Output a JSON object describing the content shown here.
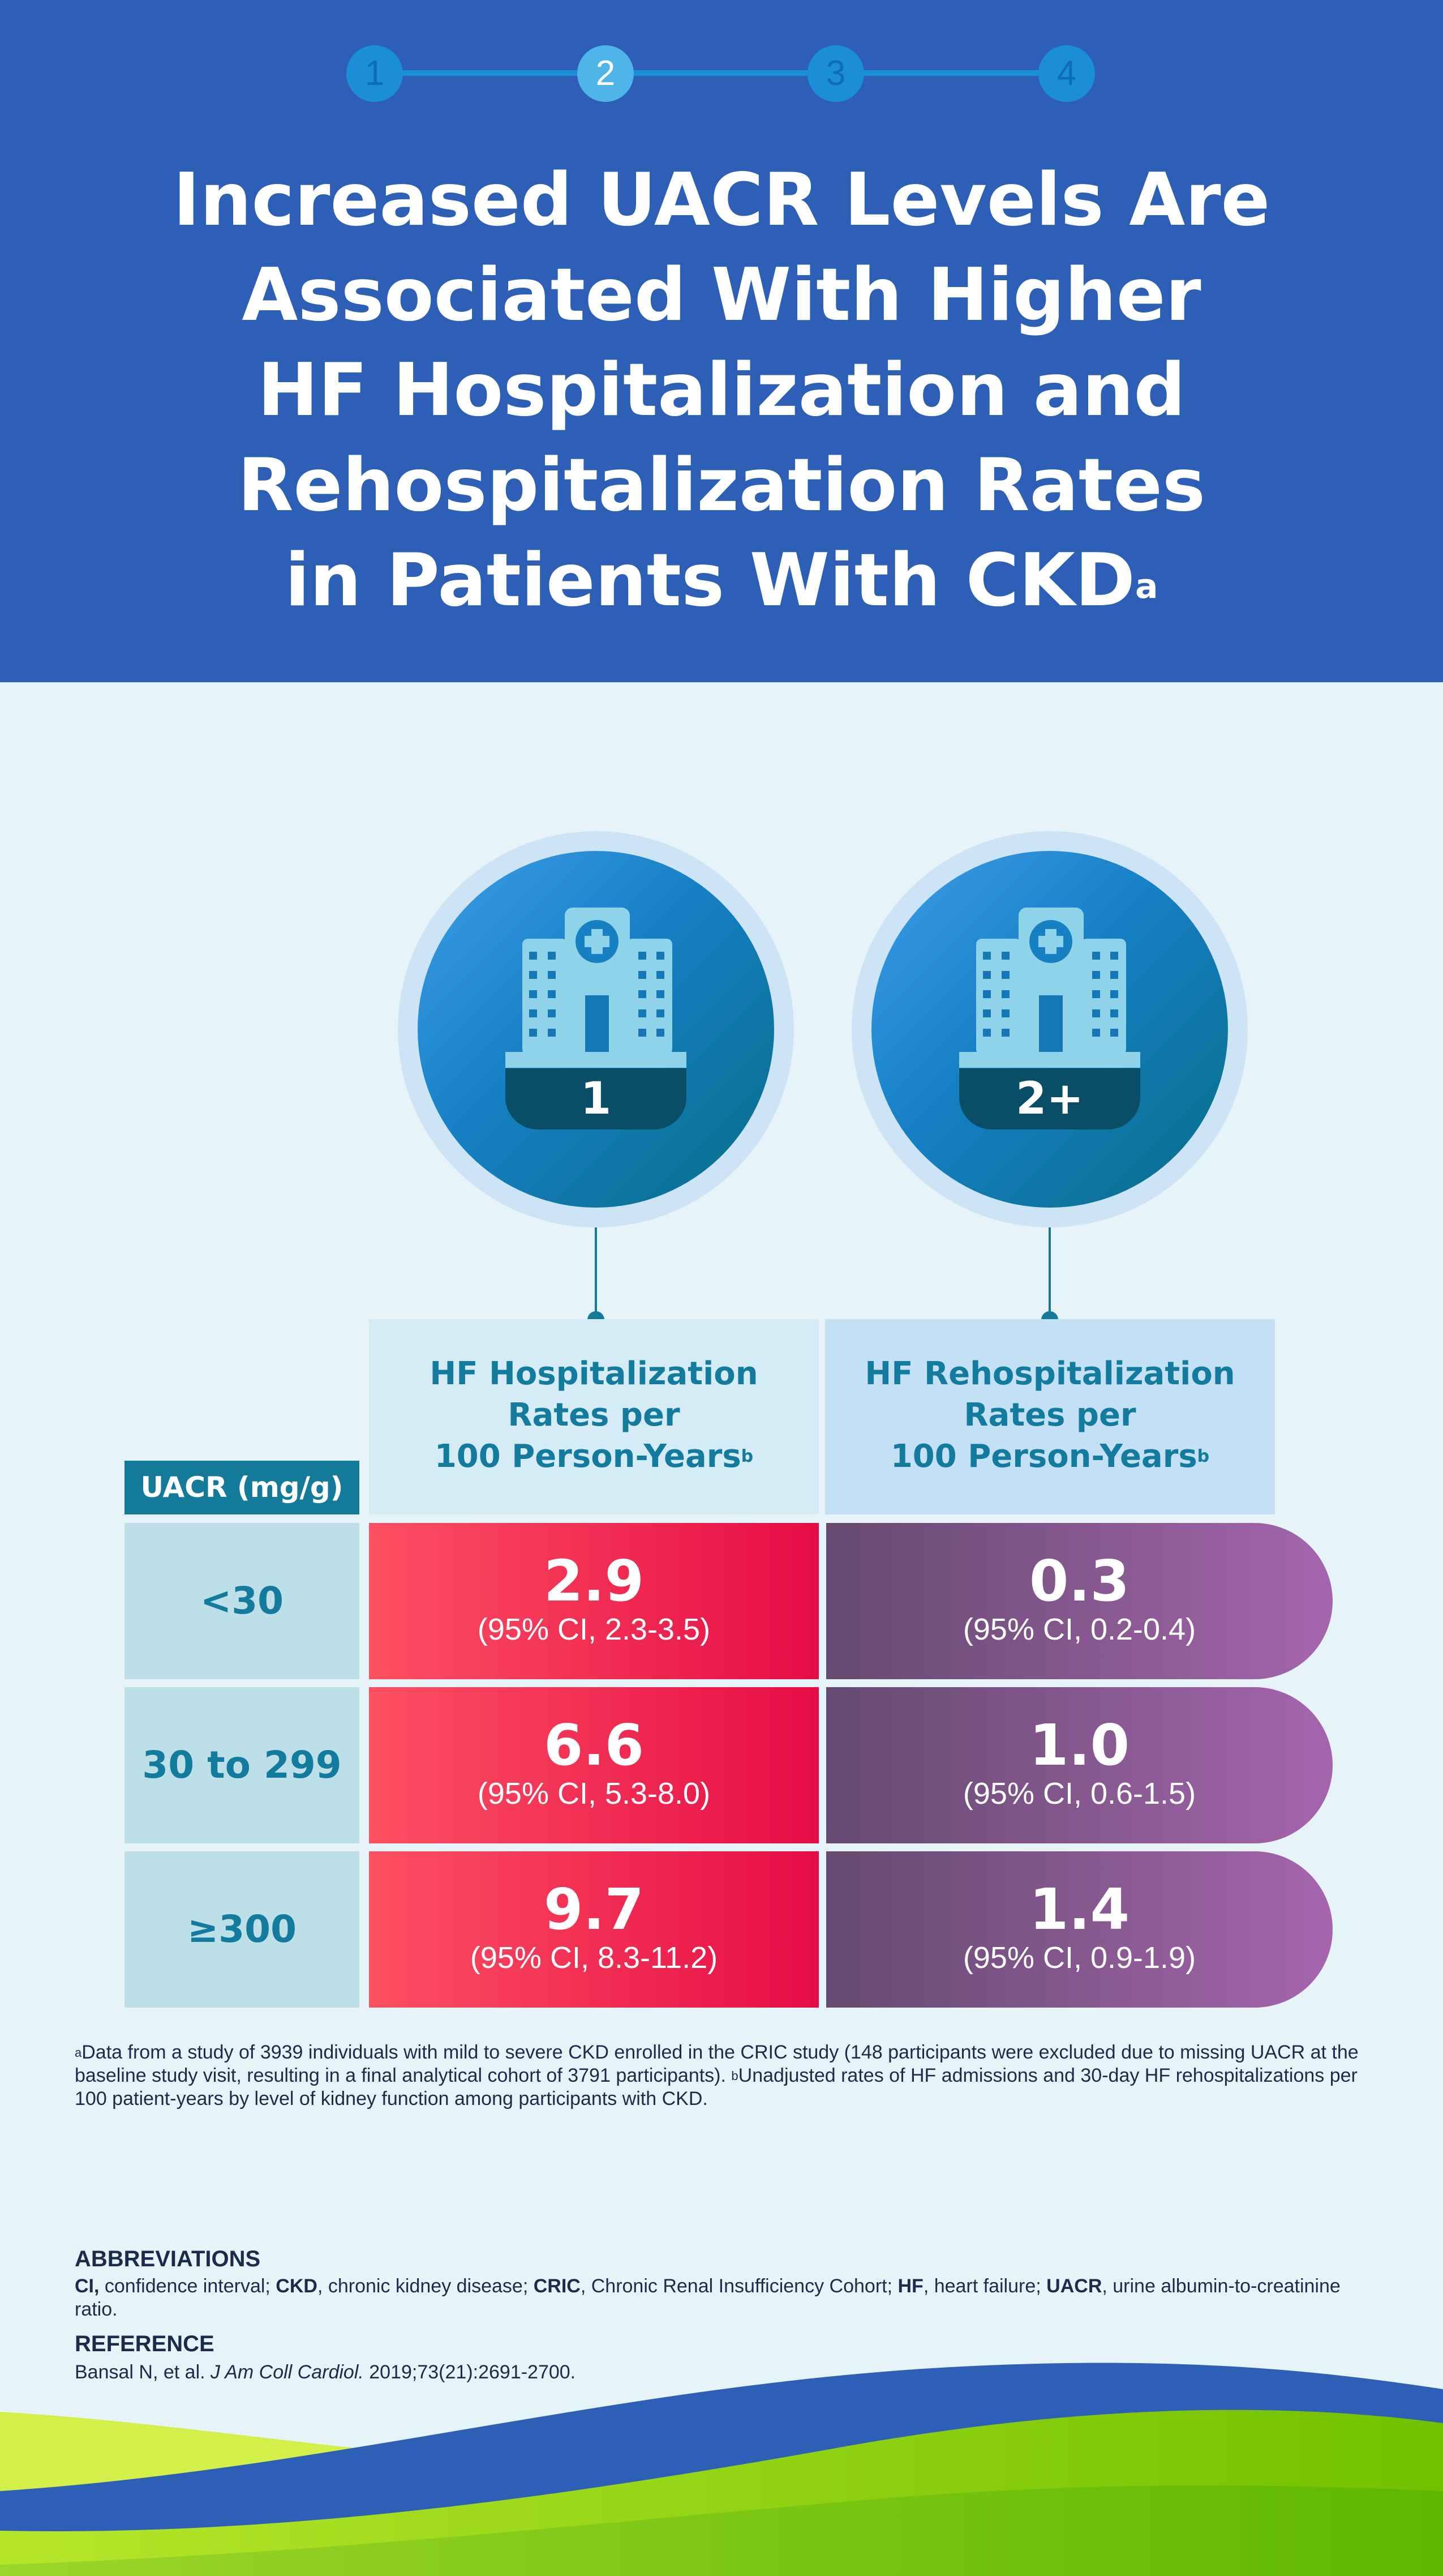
{
  "steps": [
    "1",
    "2",
    "3",
    "4"
  ],
  "title": {
    "lines": [
      "Increased UACR Levels Are",
      "Associated With Higher",
      "HF Hospitalization and",
      "Rehospitalization Rates",
      "in Patients With CKD"
    ],
    "superscript": "a"
  },
  "icons": {
    "first_badge": "1",
    "second_badge": "2+",
    "names": [
      "hospital-icon",
      "hospital-icon"
    ]
  },
  "columns": {
    "hosp": {
      "lines": [
        "HF Hospitalization",
        "Rates per",
        "100 Person-Years"
      ],
      "sup": "b"
    },
    "rehosp": {
      "lines": [
        "HF Rehospitalization",
        "Rates per",
        "100 Person-Years"
      ],
      "sup": "b"
    }
  },
  "table": {
    "uacr_header": "UACR (mg/g)",
    "rows": [
      {
        "label": "<30",
        "hosp_value": "2.9",
        "hosp_ci": "(95% CI, 2.3-3.5)",
        "rehosp_value": "0.3",
        "rehosp_ci": "(95% CI, 0.2-0.4)"
      },
      {
        "label": "30 to 299",
        "hosp_value": "6.6",
        "hosp_ci": "(95% CI, 5.3-8.0)",
        "rehosp_value": "1.0",
        "rehosp_ci": "(95% CI, 0.6-1.5)"
      },
      {
        "label": "≥300",
        "hosp_value": "9.7",
        "hosp_ci": "(95% CI, 8.3-11.2)",
        "rehosp_value": "1.4",
        "rehosp_ci": "(95% CI, 0.9-1.9)"
      }
    ]
  },
  "footnote": {
    "a_mark": "a",
    "a_text": "Data from a study of 3939 individuals with mild to severe CKD enrolled in the CRIC study (148 participants were excluded due to missing UACR at the baseline study visit, resulting in a final analytical cohort of 3791 participants). ",
    "b_mark": "b",
    "b_text": "Unadjusted rates of HF admissions and 30-day HF rehospitalizations per 100 patient-years by level of kidney function among participants with CKD."
  },
  "abbreviations": {
    "heading": "ABBREVIATIONS",
    "items": [
      {
        "abbr": "CI,",
        "def": " confidence interval; "
      },
      {
        "abbr": "CKD",
        "def": ", chronic kidney disease; "
      },
      {
        "abbr": "CRIC",
        "def": ", Chronic Renal Insufficiency Cohort; "
      },
      {
        "abbr": "HF",
        "def": ", heart failure; "
      },
      {
        "abbr": "UACR",
        "def": ", urine albumin-to-creatinine ratio."
      }
    ]
  },
  "reference": {
    "heading": "REFERENCE",
    "authors": "Bansal N, et al. ",
    "journal": "J Am Coll Cardiol.",
    "citation": " 2019;73(21):2691-2700."
  },
  "colors": {
    "header_bg": "#2c5fb5",
    "page_bg": "#e6f4fa",
    "teal": "#137b9d",
    "red_start": "#fd5062",
    "red_end": "#e60c45",
    "purple_start": "#654a70",
    "purple_end": "#a565ad",
    "green": "#7cc400"
  }
}
